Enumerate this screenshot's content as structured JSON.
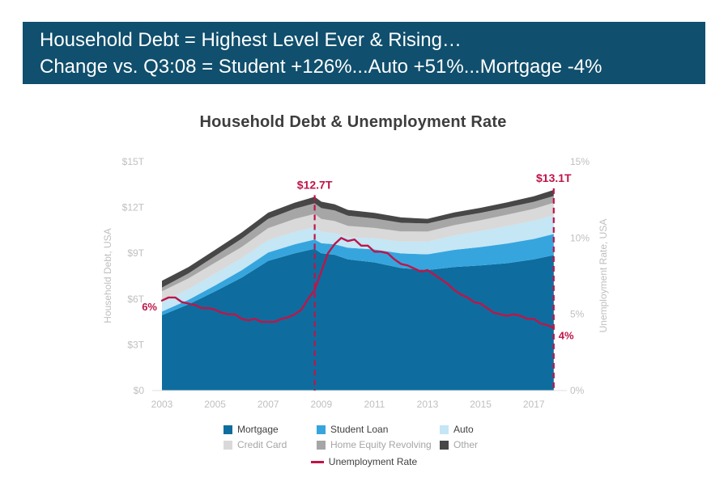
{
  "banner": {
    "line1": "Household Debt = Highest Level Ever & Rising…",
    "line2": "Change vs. Q3:08 = Student +126%...Auto +51%...Mortgage -4%"
  },
  "colors": {
    "banner_bg": "#104f6d",
    "banner_text": "#ffffff",
    "title_text": "#3d3d3d",
    "axis_text": "#bfbfbf",
    "annotation": "#be1549",
    "legend_text": "#3f3f3f",
    "legend_text_muted": "#a6a6a6",
    "baseline": "#e2e2e2"
  },
  "chart_data": {
    "type": "area",
    "title": "Household Debt & Unemployment Rate",
    "legend_position": "bottom",
    "grid": false,
    "x_axis": {
      "min": 2003,
      "max": 2018,
      "ticks": [
        2003,
        2005,
        2007,
        2009,
        2011,
        2013,
        2015,
        2017
      ]
    },
    "left_axis": {
      "label": "Household Debt, USA",
      "min": 0,
      "max": 15,
      "ticks": [
        {
          "value": 0,
          "label": "$0"
        },
        {
          "value": 3,
          "label": "$3T"
        },
        {
          "value": 6,
          "label": "$6T"
        },
        {
          "value": 9,
          "label": "$9T"
        },
        {
          "value": 12,
          "label": "$12T"
        },
        {
          "value": 15,
          "label": "$15T"
        }
      ]
    },
    "right_axis": {
      "label": "Unemployment Rate, USA",
      "min": 0,
      "max": 15,
      "ticks": [
        {
          "value": 0,
          "label": "0%"
        },
        {
          "value": 5,
          "label": "5%"
        },
        {
          "value": 10,
          "label": "10%"
        },
        {
          "value": 15,
          "label": "15%"
        }
      ]
    },
    "x": [
      2003,
      2004,
      2005,
      2006,
      2007,
      2008,
      2008.75,
      2009,
      2009.5,
      2010,
      2011,
      2012,
      2013,
      2014,
      2015,
      2016,
      2017,
      2017.75
    ],
    "series": [
      {
        "name": "Mortgage",
        "color": "#0e6d9e",
        "label_style": "dark",
        "values": [
          4.94,
          5.65,
          6.5,
          7.4,
          8.5,
          9.0,
          9.29,
          9.0,
          8.9,
          8.6,
          8.4,
          8.03,
          7.9,
          8.1,
          8.2,
          8.35,
          8.6,
          8.88
        ]
      },
      {
        "name": "Student Loan",
        "color": "#36a5de",
        "label_style": "dark",
        "values": [
          0.24,
          0.3,
          0.39,
          0.48,
          0.55,
          0.59,
          0.61,
          0.66,
          0.69,
          0.76,
          0.85,
          0.96,
          1.03,
          1.12,
          1.21,
          1.29,
          1.34,
          1.38
        ]
      },
      {
        "name": "Auto",
        "color": "#c4e6f5",
        "label_style": "dark",
        "values": [
          0.64,
          0.7,
          0.77,
          0.8,
          0.81,
          0.81,
          0.81,
          0.75,
          0.72,
          0.7,
          0.72,
          0.77,
          0.83,
          0.94,
          1.04,
          1.14,
          1.19,
          1.22
        ]
      },
      {
        "name": "Credit Card",
        "color": "#d9d9d9",
        "label_style": "muted",
        "values": [
          0.69,
          0.7,
          0.72,
          0.73,
          0.79,
          0.85,
          0.87,
          0.84,
          0.8,
          0.73,
          0.69,
          0.67,
          0.66,
          0.68,
          0.71,
          0.75,
          0.78,
          0.83
        ]
      },
      {
        "name": "Home Equity Revolving",
        "color": "#a6a6a6",
        "label_style": "muted",
        "values": [
          0.24,
          0.33,
          0.44,
          0.54,
          0.61,
          0.67,
          0.69,
          0.71,
          0.7,
          0.67,
          0.62,
          0.57,
          0.53,
          0.51,
          0.49,
          0.47,
          0.46,
          0.44
        ]
      },
      {
        "name": "Other",
        "color": "#474747",
        "label_style": "muted",
        "values": [
          0.45,
          0.42,
          0.4,
          0.41,
          0.4,
          0.4,
          0.43,
          0.42,
          0.4,
          0.38,
          0.37,
          0.35,
          0.31,
          0.32,
          0.33,
          0.34,
          0.36,
          0.4
        ]
      }
    ],
    "line_series": {
      "name": "Unemployment Rate",
      "color": "#be1549",
      "axis": "right",
      "x": [
        2003,
        2003.25,
        2003.5,
        2003.75,
        2004,
        2004.25,
        2004.5,
        2004.75,
        2005,
        2005.25,
        2005.5,
        2005.75,
        2006,
        2006.25,
        2006.5,
        2006.75,
        2007,
        2007.25,
        2007.5,
        2007.75,
        2008,
        2008.25,
        2008.5,
        2008.75,
        2009,
        2009.25,
        2009.5,
        2009.75,
        2010,
        2010.25,
        2010.5,
        2010.75,
        2011,
        2011.25,
        2011.5,
        2011.75,
        2012,
        2012.25,
        2012.5,
        2012.75,
        2013,
        2013.25,
        2013.5,
        2013.75,
        2014,
        2014.25,
        2014.5,
        2014.75,
        2015,
        2015.25,
        2015.5,
        2015.75,
        2016,
        2016.25,
        2016.5,
        2016.75,
        2017,
        2017.25,
        2017.5,
        2017.75
      ],
      "values": [
        5.9,
        6.1,
        6.1,
        5.8,
        5.7,
        5.6,
        5.4,
        5.4,
        5.3,
        5.1,
        5.0,
        5.0,
        4.7,
        4.6,
        4.7,
        4.5,
        4.5,
        4.5,
        4.7,
        4.8,
        5.0,
        5.3,
        6.0,
        6.6,
        7.8,
        9.0,
        9.6,
        10.0,
        9.8,
        9.9,
        9.5,
        9.5,
        9.1,
        9.1,
        9.0,
        8.6,
        8.3,
        8.2,
        8.0,
        7.8,
        7.9,
        7.6,
        7.3,
        7.0,
        6.6,
        6.3,
        6.1,
        5.8,
        5.7,
        5.4,
        5.1,
        5.0,
        4.9,
        5.0,
        4.9,
        4.7,
        4.7,
        4.4,
        4.3,
        4.1
      ]
    },
    "annotations": [
      {
        "label": "$12.7T",
        "x": 2008.75,
        "value": 12.7,
        "type": "peak-line"
      },
      {
        "label": "$13.1T",
        "x": 2017.75,
        "value": 13.15,
        "type": "peak-line"
      },
      {
        "label": "6%",
        "x": 2003,
        "value": 6.0,
        "type": "rate-start"
      },
      {
        "label": "4%",
        "x": 2017.75,
        "value": 4.1,
        "type": "rate-end"
      }
    ]
  }
}
